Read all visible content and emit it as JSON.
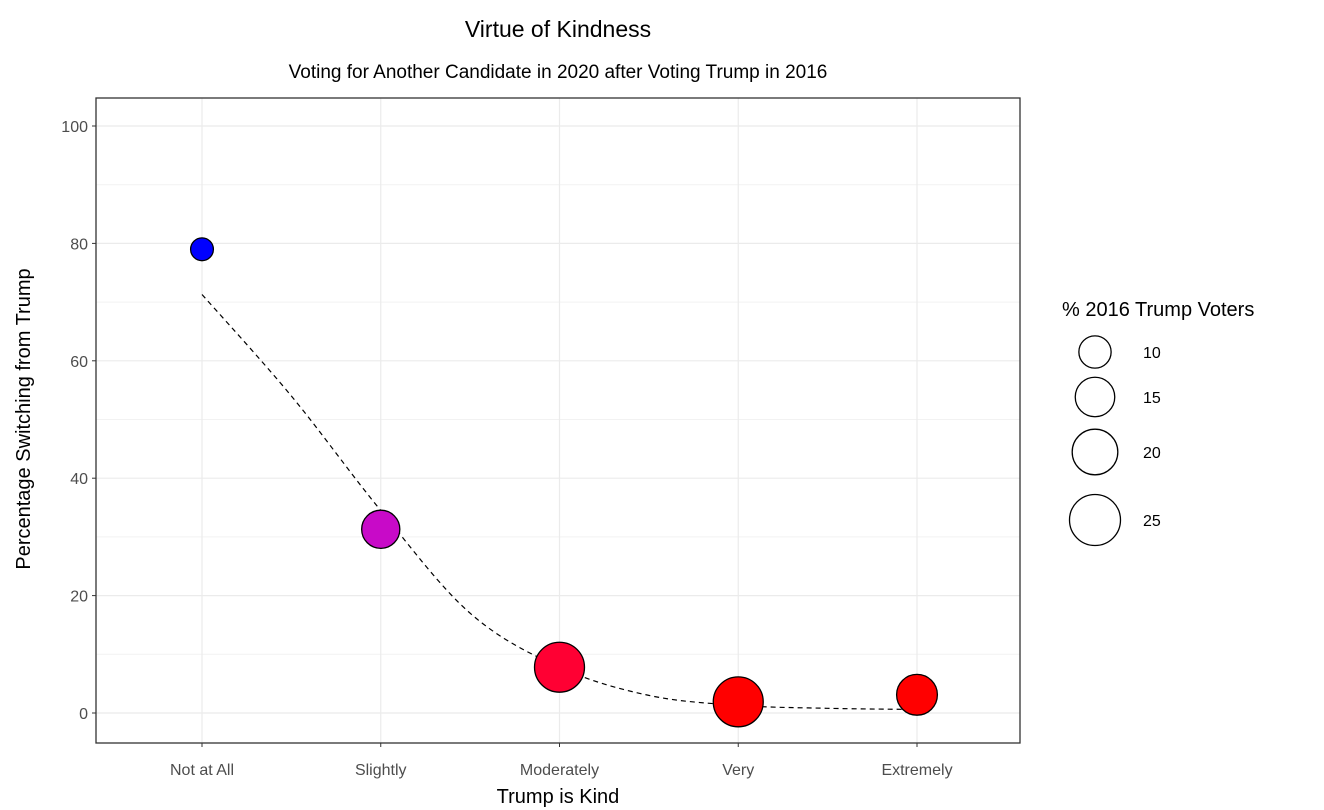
{
  "chart_data": {
    "type": "scatter",
    "title": "Virtue of Kindness",
    "subtitle": "Voting for Another Candidate in 2020 after Voting Trump in 2016",
    "xlabel": "Trump is Kind",
    "ylabel": "Percentage Switching from Trump",
    "categories": [
      "Not at All",
      "Slightly",
      "Moderately",
      "Very",
      "Extremely"
    ],
    "ylim": [
      -5,
      105
    ],
    "y_ticks": [
      0,
      20,
      40,
      60,
      80,
      100
    ],
    "grid": true,
    "points": [
      {
        "category": "Not at All",
        "y": 79,
        "size": 5,
        "color": "#0000ff"
      },
      {
        "category": "Slightly",
        "y": 31.3,
        "size": 14,
        "color": "#c80ac8"
      },
      {
        "category": "Moderately",
        "y": 7.8,
        "size": 24,
        "color": "#ff0033"
      },
      {
        "category": "Very",
        "y": 1.9,
        "size": 24,
        "color": "#ff0000"
      },
      {
        "category": "Extremely",
        "y": 3.1,
        "size": 16,
        "color": "#ff0000"
      }
    ],
    "trend_line": {
      "style": "dashed",
      "color": "#000000",
      "x": [
        1,
        1.5,
        2,
        2.5,
        3,
        3.5,
        4,
        4.5,
        5
      ],
      "y": [
        71.3,
        54,
        34.5,
        17,
        7.8,
        3,
        1.3,
        0.8,
        0.6
      ]
    },
    "legend": {
      "title": "% 2016 Trump Voters",
      "position": "right",
      "entries": [
        {
          "label": "10",
          "size": 10
        },
        {
          "label": "15",
          "size": 15
        },
        {
          "label": "20",
          "size": 20
        },
        {
          "label": "25",
          "size": 25
        }
      ]
    }
  }
}
